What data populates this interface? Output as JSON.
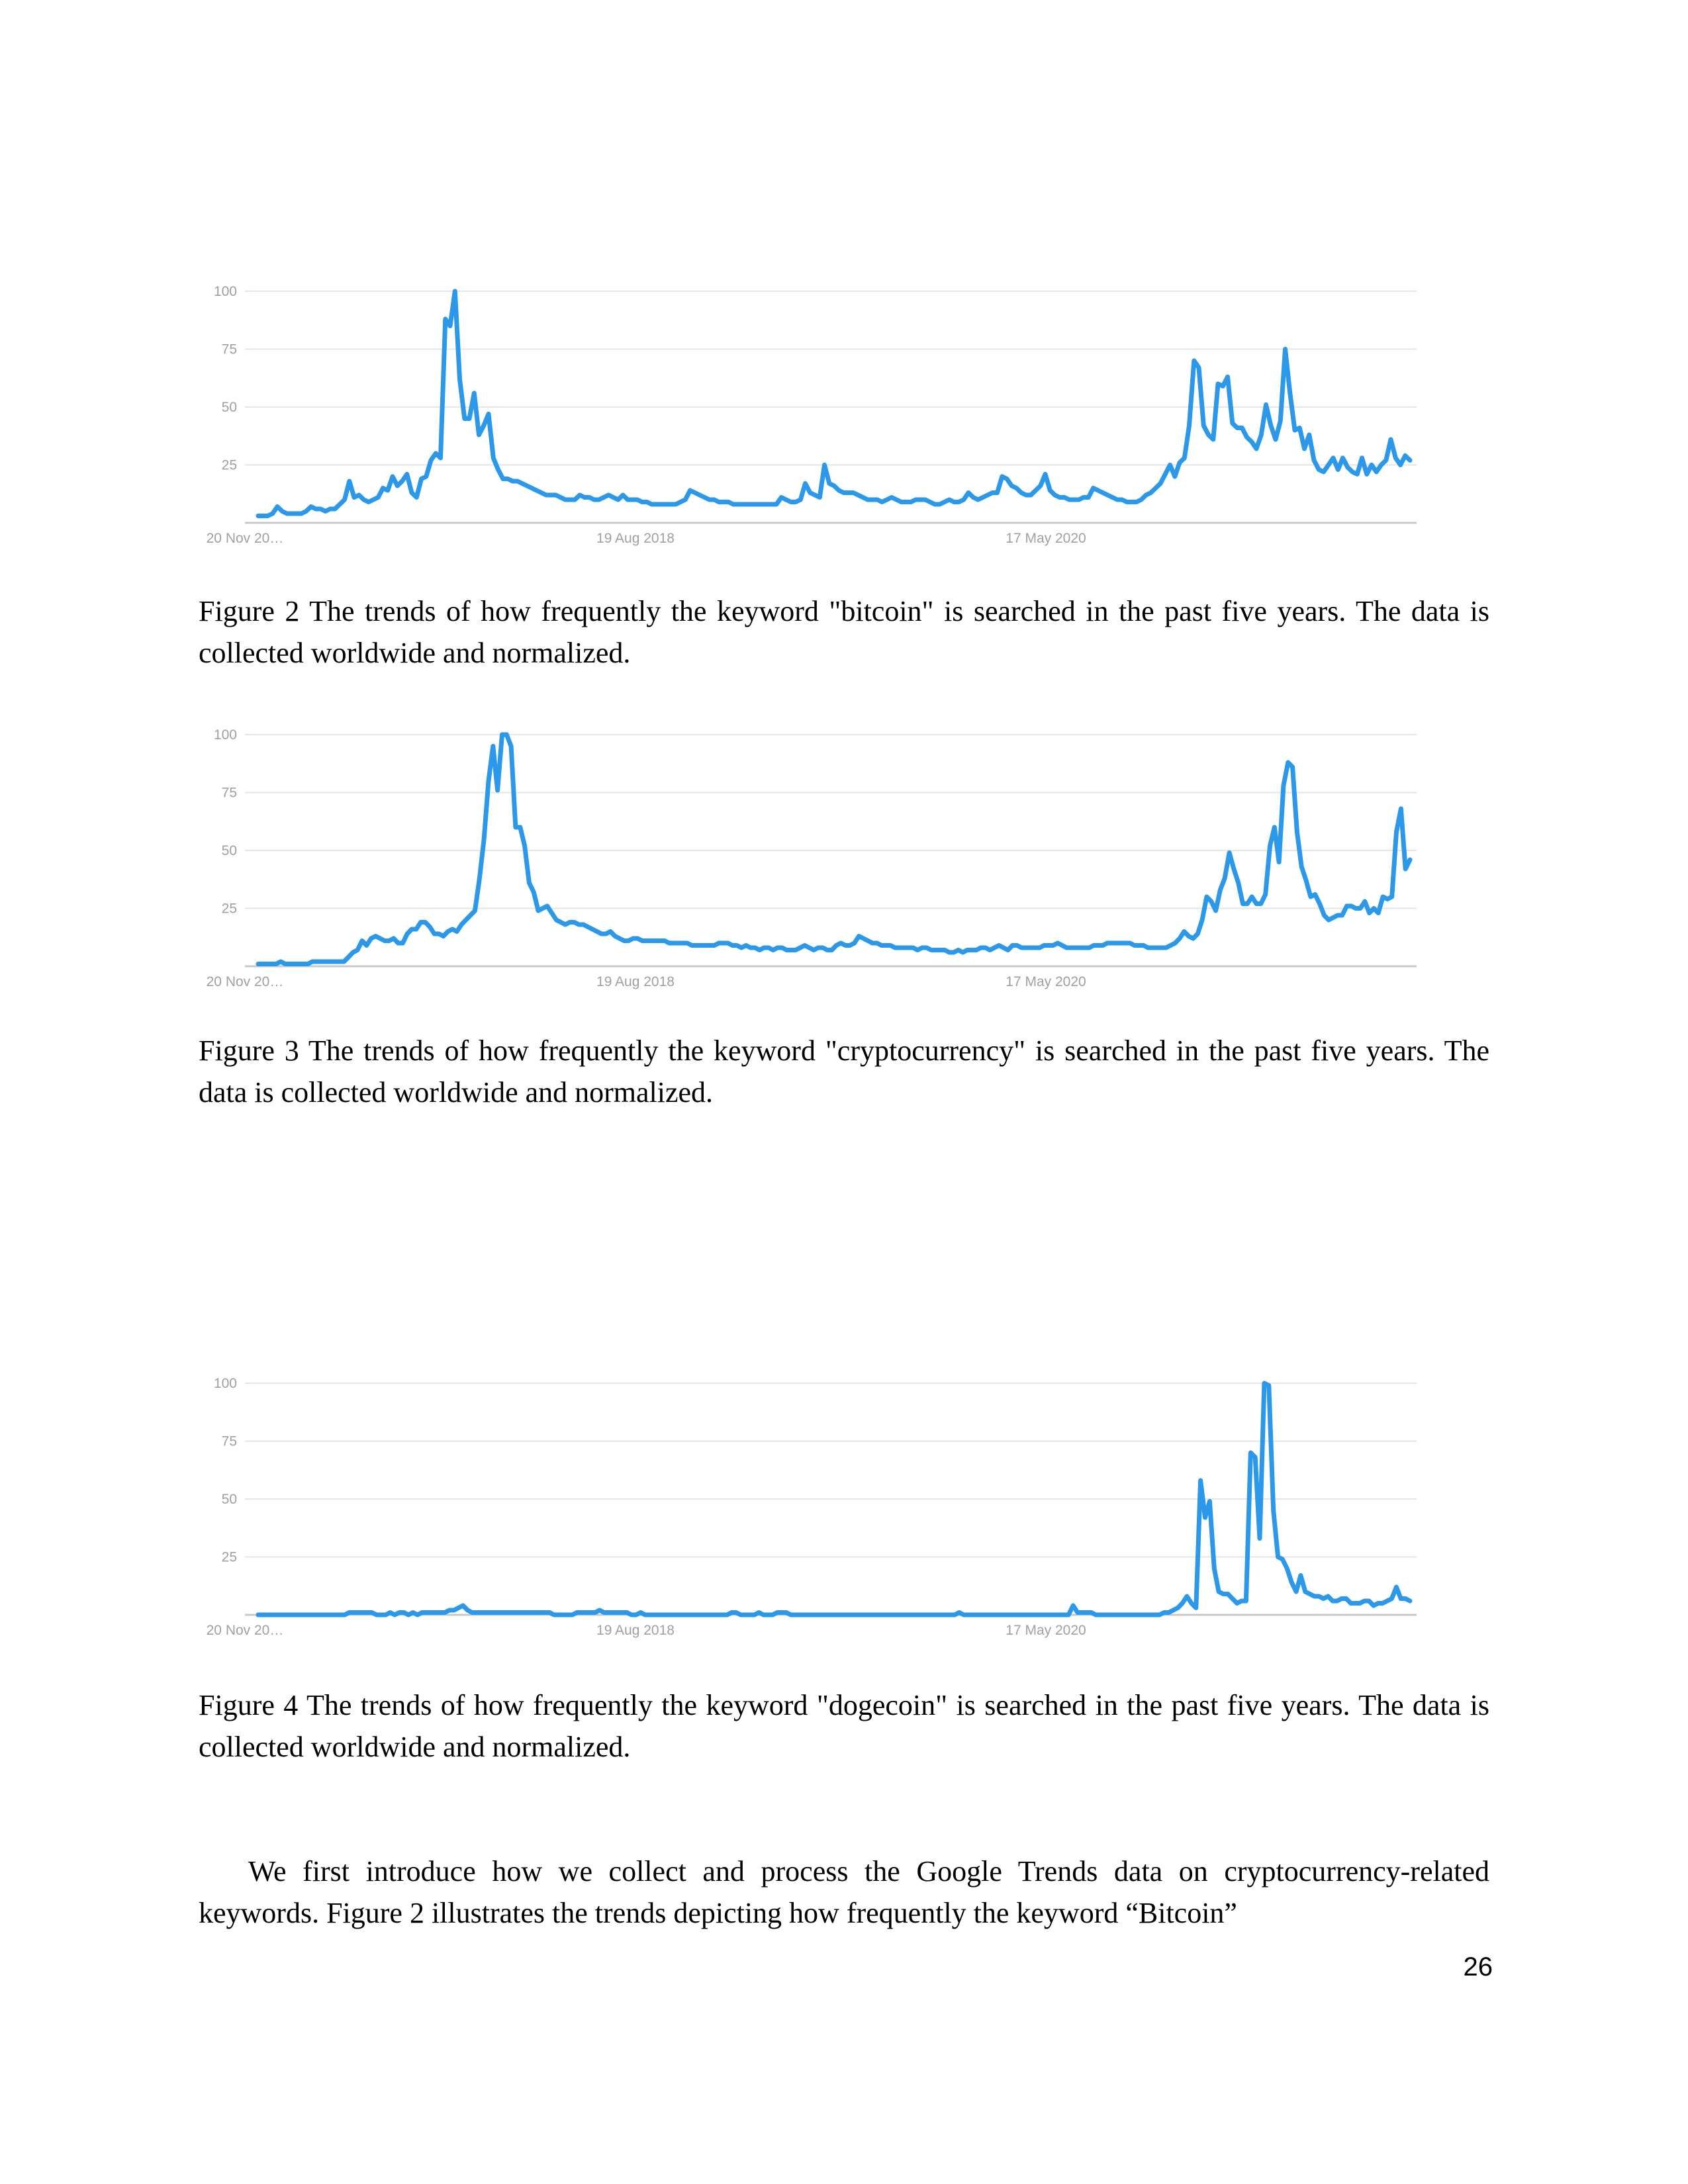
{
  "figures": [
    {
      "id": "fig2",
      "caption": "Figure 2 The trends of how frequently the keyword \"bitcoin\" is searched in the past five years. The data is collected worldwide and normalized.",
      "chart_data": {
        "type": "line",
        "x_tick_labels": [
          "20 Nov 20…",
          "19 Aug 2018",
          "17 May 2020"
        ],
        "y_ticks": [
          25,
          50,
          75,
          100
        ],
        "ylim": [
          0,
          100
        ],
        "grid": true,
        "series": [
          {
            "color": "#2b98ea",
            "values": [
              3,
              3,
              3,
              4,
              7,
              5,
              4,
              4,
              4,
              4,
              5,
              7,
              6,
              6,
              5,
              6,
              6,
              8,
              10,
              18,
              11,
              12,
              10,
              9,
              10,
              11,
              15,
              14,
              20,
              16,
              18,
              21,
              13,
              11,
              19,
              20,
              27,
              30,
              28,
              88,
              85,
              100,
              62,
              45,
              45,
              56,
              38,
              42,
              47,
              28,
              23,
              19,
              19,
              18,
              18,
              17,
              16,
              15,
              14,
              13,
              12,
              12,
              12,
              11,
              10,
              10,
              10,
              12,
              11,
              11,
              10,
              10,
              11,
              12,
              11,
              10,
              12,
              10,
              10,
              10,
              9,
              9,
              8,
              8,
              8,
              8,
              8,
              8,
              9,
              10,
              14,
              13,
              12,
              11,
              10,
              10,
              9,
              9,
              9,
              8,
              8,
              8,
              8,
              8,
              8,
              8,
              8,
              8,
              8,
              11,
              10,
              9,
              9,
              10,
              17,
              13,
              12,
              11,
              25,
              17,
              16,
              14,
              13,
              13,
              13,
              12,
              11,
              10,
              10,
              10,
              9,
              10,
              11,
              10,
              9,
              9,
              9,
              10,
              10,
              10,
              9,
              8,
              8,
              9,
              10,
              9,
              9,
              10,
              13,
              11,
              10,
              11,
              12,
              13,
              13,
              20,
              19,
              16,
              15,
              13,
              12,
              12,
              14,
              16,
              21,
              14,
              12,
              11,
              11,
              10,
              10,
              10,
              11,
              11,
              15,
              14,
              13,
              12,
              11,
              10,
              10,
              9,
              9,
              9,
              10,
              12,
              13,
              15,
              17,
              21,
              25,
              20,
              26,
              28,
              42,
              70,
              67,
              42,
              38,
              36,
              60,
              59,
              63,
              43,
              41,
              41,
              37,
              35,
              32,
              38,
              51,
              42,
              36,
              44,
              75,
              56,
              40,
              41,
              32,
              38,
              27,
              23,
              22,
              25,
              28,
              23,
              28,
              24,
              22,
              21,
              28,
              21,
              25,
              22,
              25,
              27,
              36,
              28,
              25,
              29,
              27
            ]
          }
        ]
      }
    },
    {
      "id": "fig3",
      "caption": "Figure 3 The trends of how frequently the keyword \"cryptocurrency\" is searched in the past five years. The data is collected worldwide and normalized.",
      "chart_data": {
        "type": "line",
        "x_tick_labels": [
          "20 Nov 20…",
          "19 Aug 2018",
          "17 May 2020"
        ],
        "y_ticks": [
          25,
          50,
          75,
          100
        ],
        "ylim": [
          0,
          100
        ],
        "grid": true,
        "series": [
          {
            "color": "#2b98ea",
            "values": [
              1,
              1,
              1,
              1,
              1,
              2,
              1,
              1,
              1,
              1,
              1,
              1,
              2,
              2,
              2,
              2,
              2,
              2,
              2,
              2,
              4,
              6,
              7,
              11,
              9,
              12,
              13,
              12,
              11,
              11,
              12,
              10,
              10,
              14,
              16,
              16,
              19,
              19,
              17,
              14,
              14,
              13,
              15,
              16,
              15,
              18,
              20,
              22,
              24,
              38,
              55,
              80,
              95,
              76,
              100,
              100,
              95,
              60,
              60,
              52,
              36,
              32,
              24,
              25,
              26,
              23,
              20,
              19,
              18,
              19,
              19,
              18,
              18,
              17,
              16,
              15,
              14,
              14,
              15,
              13,
              12,
              11,
              11,
              12,
              12,
              11,
              11,
              11,
              11,
              11,
              11,
              10,
              10,
              10,
              10,
              10,
              9,
              9,
              9,
              9,
              9,
              9,
              10,
              10,
              10,
              9,
              9,
              8,
              9,
              8,
              8,
              7,
              8,
              8,
              7,
              8,
              8,
              7,
              7,
              7,
              8,
              9,
              8,
              7,
              8,
              8,
              7,
              7,
              9,
              10,
              9,
              9,
              10,
              13,
              12,
              11,
              10,
              10,
              9,
              9,
              9,
              8,
              8,
              8,
              8,
              8,
              7,
              8,
              8,
              7,
              7,
              7,
              7,
              6,
              6,
              7,
              6,
              7,
              7,
              7,
              8,
              8,
              7,
              8,
              9,
              8,
              7,
              9,
              9,
              8,
              8,
              8,
              8,
              8,
              9,
              9,
              9,
              10,
              9,
              8,
              8,
              8,
              8,
              8,
              8,
              9,
              9,
              9,
              10,
              10,
              10,
              10,
              10,
              10,
              9,
              9,
              9,
              8,
              8,
              8,
              8,
              8,
              9,
              10,
              12,
              15,
              13,
              12,
              14,
              20,
              30,
              28,
              24,
              33,
              38,
              49,
              42,
              36,
              27,
              27,
              30,
              27,
              27,
              31,
              52,
              60,
              45,
              78,
              88,
              86,
              58,
              43,
              37,
              30,
              31,
              27,
              22,
              20,
              21,
              22,
              22,
              26,
              26,
              25,
              25,
              28,
              23,
              25,
              23,
              30,
              29,
              30,
              58,
              68,
              42,
              46
            ]
          }
        ]
      }
    },
    {
      "id": "fig4",
      "caption": "Figure 4 The trends of how frequently the keyword \"dogecoin\" is searched in the past five years. The data is collected worldwide and normalized.",
      "chart_data": {
        "type": "line",
        "x_tick_labels": [
          "20 Nov 20…",
          "19 Aug 2018",
          "17 May 2020"
        ],
        "y_ticks": [
          25,
          50,
          75,
          100
        ],
        "ylim": [
          0,
          100
        ],
        "grid": true,
        "series": [
          {
            "color": "#2b98ea",
            "values": [
              0,
              0,
              0,
              0,
              0,
              0,
              0,
              0,
              0,
              0,
              0,
              0,
              0,
              0,
              0,
              0,
              0,
              0,
              0,
              0,
              1,
              1,
              1,
              1,
              1,
              1,
              0,
              0,
              0,
              1,
              0,
              1,
              1,
              0,
              1,
              0,
              1,
              1,
              1,
              1,
              1,
              1,
              2,
              2,
              3,
              4,
              2,
              1,
              1,
              1,
              1,
              1,
              1,
              1,
              1,
              1,
              1,
              1,
              1,
              1,
              1,
              1,
              1,
              1,
              1,
              0,
              0,
              0,
              0,
              0,
              1,
              1,
              1,
              1,
              1,
              2,
              1,
              1,
              1,
              1,
              1,
              1,
              0,
              0,
              1,
              0,
              0,
              0,
              0,
              0,
              0,
              0,
              0,
              0,
              0,
              0,
              0,
              0,
              0,
              0,
              0,
              0,
              0,
              0,
              1,
              1,
              0,
              0,
              0,
              0,
              1,
              0,
              0,
              0,
              1,
              1,
              1,
              0,
              0,
              0,
              0,
              0,
              0,
              0,
              0,
              0,
              0,
              0,
              0,
              0,
              0,
              0,
              0,
              0,
              0,
              0,
              0,
              0,
              0,
              0,
              0,
              0,
              0,
              0,
              0,
              0,
              0,
              0,
              0,
              0,
              0,
              0,
              0,
              0,
              1,
              0,
              0,
              0,
              0,
              0,
              0,
              0,
              0,
              0,
              0,
              0,
              0,
              0,
              0,
              0,
              0,
              0,
              0,
              0,
              0,
              0,
              0,
              0,
              0,
              4,
              1,
              1,
              1,
              1,
              0,
              0,
              0,
              0,
              0,
              0,
              0,
              0,
              0,
              0,
              0,
              0,
              0,
              0,
              0,
              1,
              1,
              2,
              3,
              5,
              8,
              5,
              3,
              58,
              42,
              49,
              20,
              10,
              9,
              9,
              7,
              5,
              6,
              6,
              70,
              68,
              33,
              100,
              99,
              45,
              25,
              24,
              20,
              14,
              10,
              17,
              10,
              9,
              8,
              8,
              7,
              8,
              6,
              6,
              7,
              7,
              5,
              5,
              5,
              6,
              6,
              4,
              5,
              5,
              6,
              7,
              12,
              7,
              7,
              6
            ]
          }
        ]
      }
    }
  ],
  "body_paragraph": "We first introduce how we collect and process the Google Trends data on cryptocurrency-related keywords. Figure 2 illustrates the trends depicting how frequently the keyword “Bitcoin”",
  "page_number": "26"
}
